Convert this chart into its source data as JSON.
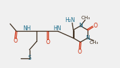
{
  "bg_color": "#f0f0f0",
  "bond_color": "#3a2a1a",
  "heteroatom_color": "#1a6b8a",
  "o_color": "#cc2200",
  "s_color": "#1a6b8a",
  "line_width": 0.9,
  "font_size_label": 5.5,
  "fig_width": 1.74,
  "fig_height": 0.99,
  "dpi": 100,
  "xlim": [
    0,
    10.5
  ],
  "ylim": [
    0.5,
    6.2
  ]
}
